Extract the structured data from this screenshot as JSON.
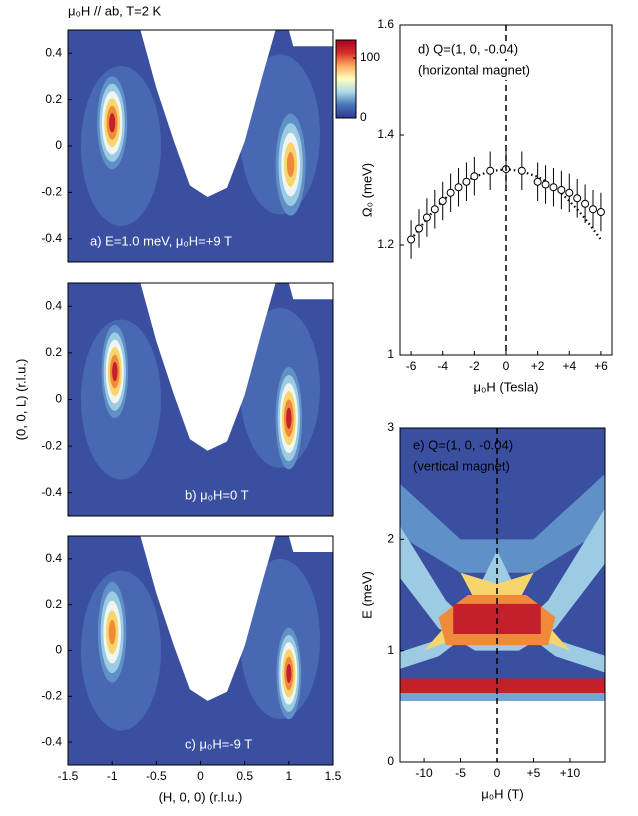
{
  "header": "μ₀H // ab, T=2 K",
  "chart_data": [
    {
      "type": "heatmap",
      "annotation": "a) E=1.0 meV, μ₀H=+9 T",
      "xlim": [
        -1.5,
        1.5
      ],
      "ylim": [
        -0.5,
        0.5
      ],
      "yticks": [
        -0.4,
        -0.2,
        0,
        0.2,
        0.4
      ],
      "colorbar": {
        "clim": [
          0,
          130
        ],
        "ticks": [
          0,
          100
        ]
      }
    },
    {
      "type": "heatmap",
      "annotation": "b) μ₀H=0 T",
      "ylabel": "(0, 0, L) (r.l.u.)",
      "xlim": [
        -1.5,
        1.5
      ],
      "ylim": [
        -0.5,
        0.5
      ],
      "yticks": [
        -0.4,
        -0.2,
        0,
        0.2,
        0.4
      ]
    },
    {
      "type": "heatmap",
      "annotation": "c) μ₀H=-9 T",
      "xlabel": "(H, 0, 0) (r.l.u.)",
      "xlim": [
        -1.5,
        1.5
      ],
      "ylim": [
        -0.5,
        0.5
      ],
      "yticks": [
        -0.4,
        -0.2,
        0,
        0.2,
        0.4
      ],
      "xticks": [
        -1.5,
        -1,
        -0.5,
        0,
        0.5,
        1,
        1.5
      ]
    },
    {
      "type": "scatter",
      "annotation": [
        "d) Q=(1, 0, -0.04)",
        "(horizontal magnet)"
      ],
      "xlabel": "μ₀H (Tesla)",
      "ylabel": "Ω₀ (meV)",
      "xlim": [
        -6.7,
        6.7
      ],
      "ylim": [
        1,
        1.6
      ],
      "yticks": [
        1,
        1.2,
        1.4,
        1.6
      ],
      "xticks": [
        -6,
        -4,
        -2,
        0,
        {
          "value": 2,
          "label": "+2"
        },
        {
          "value": 4,
          "label": "+4"
        },
        {
          "value": 6,
          "label": "+6"
        }
      ],
      "vline": 0,
      "x": [
        -6,
        -5.5,
        -5,
        -4.5,
        -4,
        -3.5,
        -3,
        -2.5,
        -2,
        -1,
        0,
        1,
        2,
        2.5,
        3,
        3.5,
        4,
        4.5,
        5,
        5.5,
        6
      ],
      "series": [
        {
          "values": [
            1.21,
            1.23,
            1.25,
            1.265,
            1.28,
            1.295,
            1.305,
            1.315,
            1.325,
            1.335,
            1.338,
            1.335,
            1.315,
            1.31,
            1.305,
            1.3,
            1.295,
            1.285,
            1.275,
            1.265,
            1.26
          ],
          "errors": [
            0.035,
            0.035,
            0.035,
            0.035,
            0.035,
            0.035,
            0.035,
            0.035,
            0.035,
            0.035,
            0.035,
            0.035,
            0.035,
            0.035,
            0.035,
            0.035,
            0.035,
            0.035,
            0.035,
            0.035,
            0.035
          ],
          "color": "#000000"
        },
        {
          "values": [
            1.21,
            1.229,
            1.248,
            1.265,
            1.28,
            1.294,
            1.306,
            1.316,
            1.324,
            1.334,
            1.338,
            1.334,
            1.324,
            1.316,
            1.306,
            1.294,
            1.28,
            1.265,
            1.248,
            1.229,
            1.21
          ],
          "color": "#000000",
          "style": "dotted"
        }
      ]
    },
    {
      "type": "heatmap",
      "annotation": [
        "e) Q=(1, 0, -0.04)",
        "(vertical magnet)"
      ],
      "xlabel": "μ₀H (T)",
      "ylabel": "E (meV)",
      "xlim": [
        -13.3,
        14.8
      ],
      "ylim": [
        0,
        3
      ],
      "yticks": [
        0,
        1,
        2,
        3
      ],
      "xticks": [
        -10,
        -5,
        0,
        {
          "value": 5,
          "label": "+5"
        },
        {
          "value": 10,
          "label": "+10"
        }
      ],
      "vline": 0
    }
  ]
}
